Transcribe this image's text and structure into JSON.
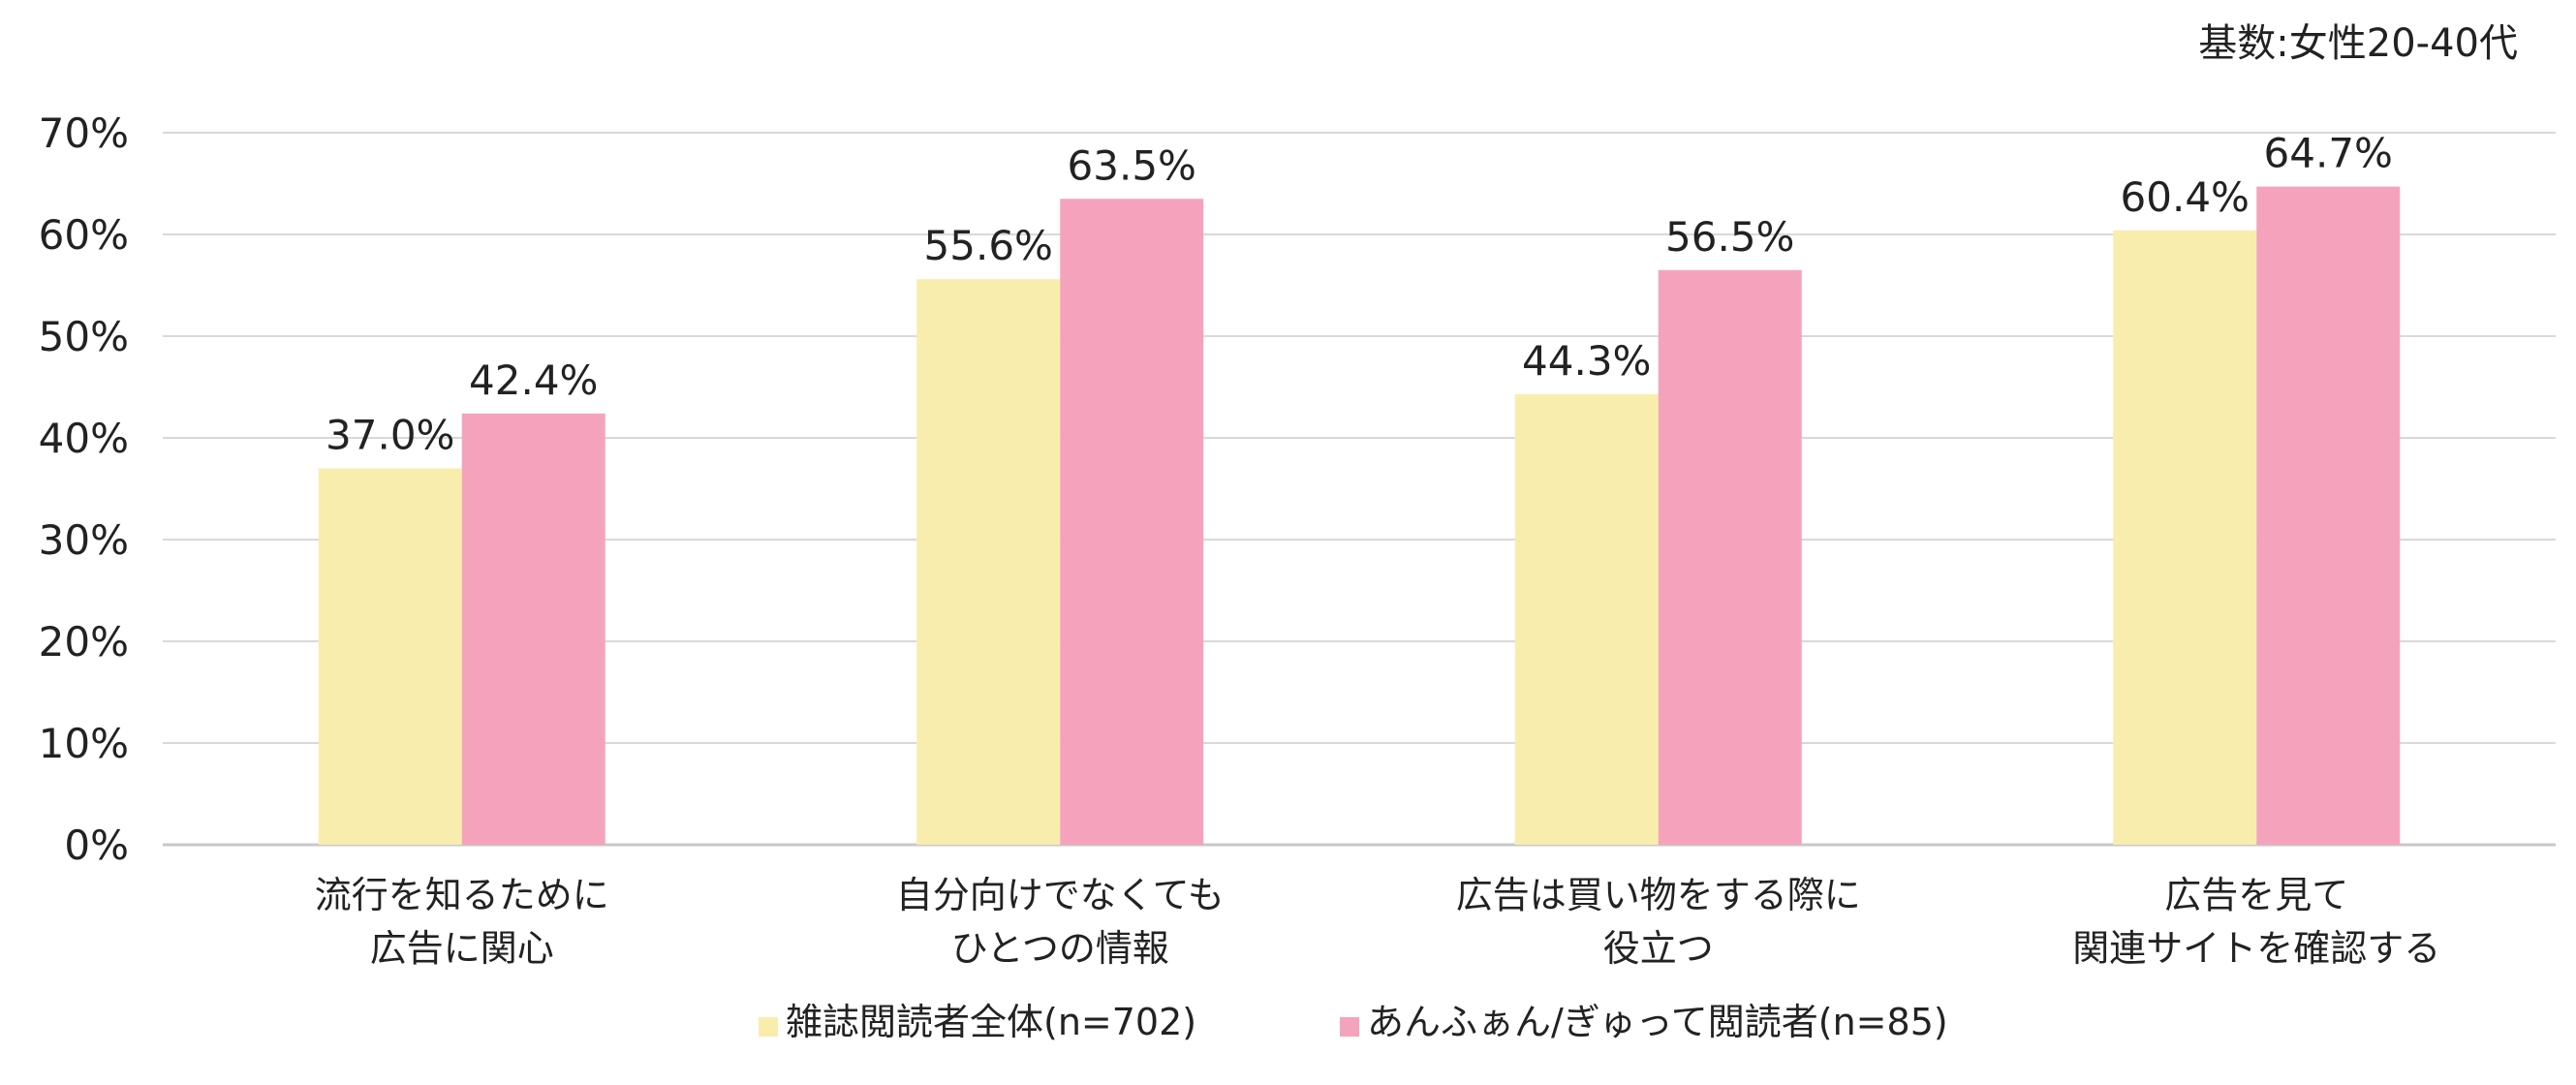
{
  "note": "基数:女性20-40代",
  "chart_data": {
    "type": "bar",
    "title": "",
    "xlabel": "",
    "ylabel": "",
    "ylim": [
      0,
      70
    ],
    "yticks": [
      "0%",
      "10%",
      "20%",
      "30%",
      "40%",
      "50%",
      "60%",
      "70%"
    ],
    "grid": true,
    "legend_position": "bottom",
    "categories": [
      [
        "流行を知るために",
        "広告に関心"
      ],
      [
        "自分向けでなくても",
        "ひとつの情報"
      ],
      [
        "広告は買い物をする際に",
        "役立つ"
      ],
      [
        "広告を見て",
        "関連サイトを確認する"
      ]
    ],
    "series": [
      {
        "name": "雑誌閲読者全体(n=702)",
        "color": "#F9EDAD",
        "values": [
          37.0,
          55.6,
          44.3,
          60.4
        ],
        "labels": [
          "37.0%",
          "55.6%",
          "44.3%",
          "60.4%"
        ]
      },
      {
        "name": "あんふぁん/ぎゅって閲読者(n=85)",
        "color": "#F5A3BC",
        "values": [
          42.4,
          63.5,
          56.5,
          64.7
        ],
        "labels": [
          "42.4%",
          "63.5%",
          "56.5%",
          "64.7%"
        ]
      }
    ]
  }
}
